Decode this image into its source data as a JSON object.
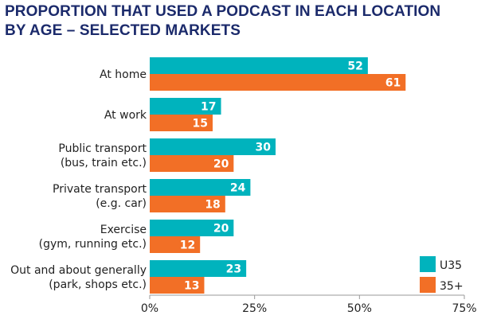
{
  "title_lines": [
    "PROPORTION THAT USED A PODCAST IN EACH LOCATION",
    "BY AGE – SELECTED MARKETS"
  ],
  "chart_data": {
    "type": "bar",
    "orientation": "horizontal",
    "title": "PROPORTION THAT USED A PODCAST IN EACH LOCATION BY AGE – SELECTED MARKETS",
    "categories": [
      [
        "At home"
      ],
      [
        "At work"
      ],
      [
        "Public transport",
        "(bus, train etc.)"
      ],
      [
        "Private transport",
        "(e.g. car)"
      ],
      [
        "Exercise",
        "(gym, running etc.)"
      ],
      [
        "Out and about generally",
        "(park, shops etc.)"
      ]
    ],
    "series": [
      {
        "name": "U35",
        "color": "#00b3bd",
        "values": [
          52,
          17,
          30,
          24,
          20,
          23
        ]
      },
      {
        "name": "35+",
        "color": "#f26f26",
        "values": [
          61,
          15,
          20,
          18,
          12,
          13
        ]
      }
    ],
    "xlim": [
      0,
      75
    ],
    "xticks": [
      "0%",
      "25%",
      "50%",
      "75%"
    ],
    "xtick_values": [
      0,
      25,
      50,
      75
    ],
    "grid": false,
    "legend_position": "bottom-right"
  }
}
